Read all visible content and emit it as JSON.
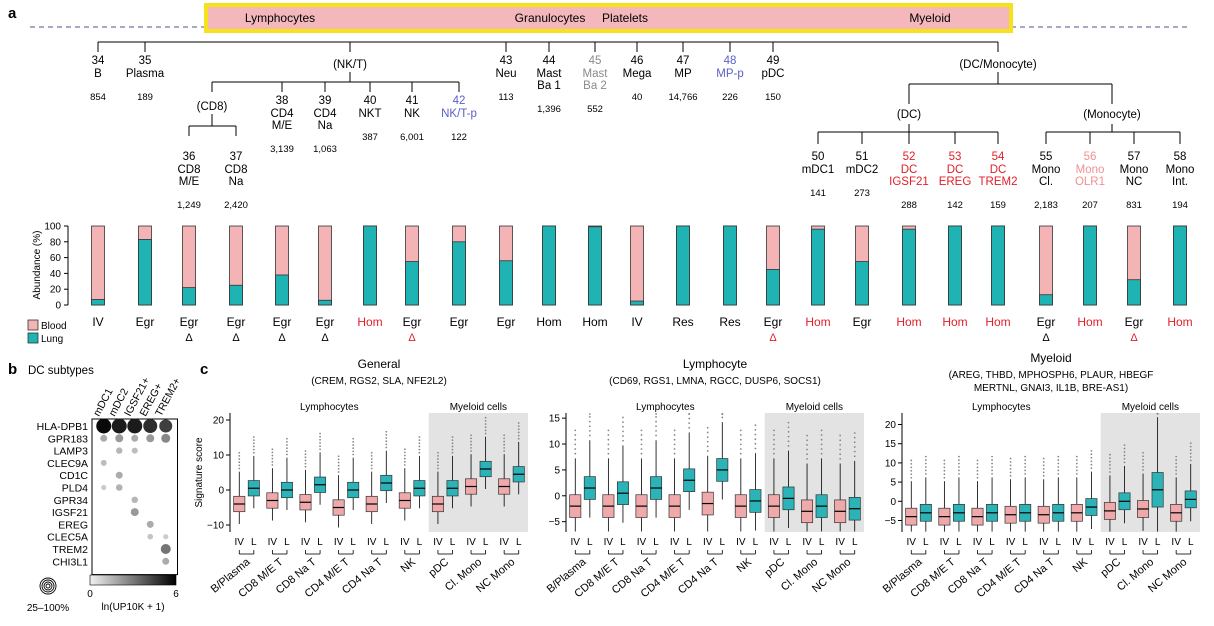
{
  "panel_a": {
    "letter": "a",
    "lineage_labels": [
      {
        "text": "Lymphocytes"
      },
      {
        "text": "Granulocytes"
      },
      {
        "text": "Platelets"
      },
      {
        "text": "Myeloid"
      }
    ],
    "groups": {
      "nkt": "(NK/T)",
      "cd8": "(CD8)",
      "dc_mono": "(DC/Monocyte)",
      "dc": "(DC)",
      "mono": "(Monocyte)"
    },
    "clusters": [
      {
        "id": "34",
        "name": [
          "B"
        ],
        "count": "854",
        "color": "#000000"
      },
      {
        "id": "35",
        "name": [
          "Plasma"
        ],
        "count": "189",
        "color": "#000000"
      },
      {
        "id": "36",
        "name": [
          "CD8",
          "M/E"
        ],
        "count": "1,249",
        "color": "#000000"
      },
      {
        "id": "37",
        "name": [
          "CD8",
          "Na"
        ],
        "count": "2,420",
        "color": "#000000"
      },
      {
        "id": "38",
        "name": [
          "CD4",
          "M/E"
        ],
        "count": "3,139",
        "color": "#000000"
      },
      {
        "id": "39",
        "name": [
          "CD4",
          "Na"
        ],
        "count": "1,063",
        "color": "#000000"
      },
      {
        "id": "40",
        "name": [
          "NKT"
        ],
        "count": "387",
        "color": "#000000"
      },
      {
        "id": "41",
        "name": [
          "NK"
        ],
        "count": "6,001",
        "color": "#000000"
      },
      {
        "id": "42",
        "name": [
          "NK/T-p"
        ],
        "count": "122",
        "color": "#5b5fc7"
      },
      {
        "id": "43",
        "name": [
          "Neu"
        ],
        "count": "113",
        "color": "#000000"
      },
      {
        "id": "44",
        "name": [
          "Mast",
          "Ba 1"
        ],
        "count": "1,396",
        "color": "#000000"
      },
      {
        "id": "45",
        "name": [
          "Mast",
          "Ba 2"
        ],
        "count": "552",
        "color": "#8a8a8a"
      },
      {
        "id": "46",
        "name": [
          "Mega"
        ],
        "count": "40",
        "color": "#000000"
      },
      {
        "id": "47",
        "name": [
          "MP"
        ],
        "count": "14,766",
        "color": "#000000"
      },
      {
        "id": "48",
        "name": [
          "MP-p"
        ],
        "count": "226",
        "color": "#5b5fc7"
      },
      {
        "id": "49",
        "name": [
          "pDC"
        ],
        "count": "150",
        "color": "#000000"
      },
      {
        "id": "50",
        "name": [
          "mDC1"
        ],
        "count": "141",
        "color": "#000000"
      },
      {
        "id": "51",
        "name": [
          "mDC2"
        ],
        "count": "273",
        "color": "#000000"
      },
      {
        "id": "52",
        "name": [
          "DC",
          "IGSF21"
        ],
        "count": "288",
        "color": "#e0202a"
      },
      {
        "id": "53",
        "name": [
          "DC",
          "EREG"
        ],
        "count": "142",
        "color": "#e0202a"
      },
      {
        "id": "54",
        "name": [
          "DC",
          "TREM2"
        ],
        "count": "159",
        "color": "#e0202a"
      },
      {
        "id": "55",
        "name": [
          "Mono",
          "Cl."
        ],
        "count": "2,183",
        "color": "#000000"
      },
      {
        "id": "56",
        "name": [
          "Mono",
          "OLR1"
        ],
        "count": "207",
        "color": "#f09090"
      },
      {
        "id": "57",
        "name": [
          "Mono",
          "NC"
        ],
        "count": "831",
        "color": "#000000"
      },
      {
        "id": "58",
        "name": [
          "Mono",
          "Int."
        ],
        "count": "194",
        "color": "#000000"
      }
    ]
  },
  "chart_data": [
    {
      "type": "bar",
      "ylabel": "Abundance (%)",
      "ylim": [
        0,
        100
      ],
      "yticks": [
        "0",
        "20",
        "40",
        "60",
        "80",
        "100"
      ],
      "legend": [
        "Blood",
        "Lung"
      ],
      "categories": [
        "IV",
        "Egr",
        "Egr",
        "Egr",
        "Egr",
        "Egr",
        "Hom",
        "Egr",
        "Egr",
        "Egr",
        "Hom",
        "Hom",
        "IV",
        "Res",
        "Res",
        "Egr",
        "Hom",
        "Egr",
        "Hom",
        "Hom",
        "Hom",
        "Egr",
        "Hom",
        "Egr",
        "Hom"
      ],
      "category_colors": [
        "#000",
        "#000",
        "#000",
        "#000",
        "#000",
        "#000",
        "#e0202a",
        "#000",
        "#000",
        "#000",
        "#000",
        "#000",
        "#000",
        "#000",
        "#000",
        "#000",
        "#e0202a",
        "#000",
        "#e0202a",
        "#e0202a",
        "#e0202a",
        "#000",
        "#e0202a",
        "#000",
        "#e0202a"
      ],
      "delta": [
        "",
        "",
        "Δ",
        "Δ",
        "Δ",
        "Δ",
        "",
        "Δ",
        "",
        "",
        "",
        "",
        "",
        "",
        "",
        "Δ",
        "",
        "",
        "",
        "",
        "",
        "Δ",
        "",
        "Δ",
        ""
      ],
      "delta_colors": [
        "#000",
        "#000",
        "#000",
        "#000",
        "#000",
        "#000",
        "#000",
        "#e0202a",
        "#000",
        "#000",
        "#000",
        "#000",
        "#000",
        "#000",
        "#000",
        "#e0202a",
        "#000",
        "#000",
        "#000",
        "#000",
        "#000",
        "#000",
        "#000",
        "#e0202a",
        "#000"
      ],
      "series": [
        {
          "name": "Lung",
          "values": [
            7,
            83,
            22,
            25,
            38,
            6,
            100,
            55,
            80,
            56,
            100,
            99,
            5,
            100,
            100,
            45,
            96,
            55,
            96,
            100,
            100,
            13,
            100,
            32,
            100
          ]
        },
        {
          "name": "Blood",
          "values": [
            93,
            17,
            78,
            75,
            62,
            94,
            0,
            45,
            20,
            44,
            0,
            1,
            95,
            0,
            0,
            55,
            4,
            45,
            4,
            0,
            0,
            87,
            0,
            68,
            0
          ]
        }
      ]
    },
    {
      "type": "heatmap",
      "title": "DC subtypes",
      "columns": [
        "mDC1",
        "mDC2",
        "IGSF21+",
        "EREG+",
        "TREM2+"
      ],
      "rows": [
        "HLA-DPB1",
        "GPR183",
        "LAMP3",
        "CLEC9A",
        "CD1C",
        "PLD4",
        "GPR34",
        "IGSF21",
        "EREG",
        "CLEC5A",
        "TREM2",
        "CHI3L1"
      ],
      "values": [
        [
          6,
          5.5,
          5.5,
          5,
          4.5
        ],
        [
          1.5,
          2,
          1.5,
          2,
          2.5
        ],
        [
          0,
          1.2,
          1,
          0,
          0
        ],
        [
          1,
          0,
          0,
          0,
          0
        ],
        [
          0,
          1.5,
          0,
          0,
          0
        ],
        [
          0.6,
          1.3,
          0,
          0,
          0
        ],
        [
          0,
          0,
          1.2,
          0,
          0
        ],
        [
          0,
          0,
          2,
          0,
          0
        ],
        [
          0,
          0,
          0,
          1.5,
          0
        ],
        [
          0,
          0,
          0,
          0.8,
          0.6
        ],
        [
          0,
          0,
          0,
          0,
          3
        ],
        [
          0,
          0,
          0,
          0,
          1.5
        ]
      ],
      "legend_size": "25–100%",
      "colorbar_label": "ln(UP10K + 1)",
      "colorbar_range": [
        0,
        6
      ]
    },
    {
      "type": "box",
      "title": "General",
      "genes": "(CREM, RGS2, SLA, NFE2L2)",
      "ylabel": "Signature score",
      "yticks": [
        "−10",
        "0",
        "10",
        "20"
      ],
      "ylim": [
        -12,
        22
      ],
      "shade_label_left": "Lymphocytes",
      "shade_label_right": "Myeloid cells",
      "groups": [
        "B/Plasma",
        "CD8 M/E T",
        "CD8 Na T",
        "CD4 M/E T",
        "CD4 Na T",
        "NK",
        "pDC",
        "Cl. Mono",
        "NC Mono"
      ],
      "iv_median": [
        -4,
        -3,
        -3.5,
        -5,
        -4,
        -3,
        -4,
        1,
        1
      ],
      "l_median": [
        0.5,
        0,
        1.5,
        0,
        2,
        0.5,
        0.5,
        6,
        4.5
      ]
    },
    {
      "type": "box",
      "title": "Lymphocyte",
      "genes": "(CD69, RGS1, LMNA, RGCC, DUSP6, SOCS1)",
      "ylabel": "",
      "yticks": [
        "−5",
        "0",
        "5",
        "10",
        "15"
      ],
      "ylim": [
        -7,
        16
      ],
      "shade_label_left": "Lymphocytes",
      "shade_label_right": "Myeloid cells",
      "groups": [
        "B/Plasma",
        "CD8 M/E T",
        "CD8 Na T",
        "CD4 M/E T",
        "CD4 Na T",
        "NK",
        "pDC",
        "Cl. Mono",
        "NC Mono"
      ],
      "iv_median": [
        -2,
        -2,
        -2,
        -2,
        -1.5,
        -2,
        -2,
        -3,
        -3
      ],
      "l_median": [
        1.5,
        0.5,
        1.5,
        3,
        5,
        -1,
        -0.5,
        -2,
        -2.5
      ]
    },
    {
      "type": "box",
      "title": "Myeloid",
      "genes": "(AREG, THBD, MPHOSPH6, PLAUR, HBEGF MERTNL, GNAI3, IL1B, BRE-AS1)",
      "ylabel": "",
      "yticks": [
        "−5",
        "0",
        "5",
        "10",
        "15",
        "20"
      ],
      "ylim": [
        -8,
        23
      ],
      "shade_label_left": "Lymphocytes",
      "shade_label_right": "Myeloid cells",
      "groups": [
        "B/Plasma",
        "CD8 M/E T",
        "CD8 Na T",
        "CD4 M/E T",
        "CD4 Na T",
        "NK",
        "pDC",
        "Cl. Mono",
        "NC Mono"
      ],
      "iv_median": [
        -4,
        -4,
        -4,
        -3.5,
        -3.5,
        -3,
        -2.5,
        -2,
        -3
      ],
      "l_median": [
        -3,
        -3,
        -3,
        -3,
        -3,
        -1.5,
        0,
        3,
        0.5
      ]
    }
  ],
  "labels": {
    "b_letter": "b",
    "c_letter": "c",
    "iv": "IV",
    "l": "L"
  }
}
